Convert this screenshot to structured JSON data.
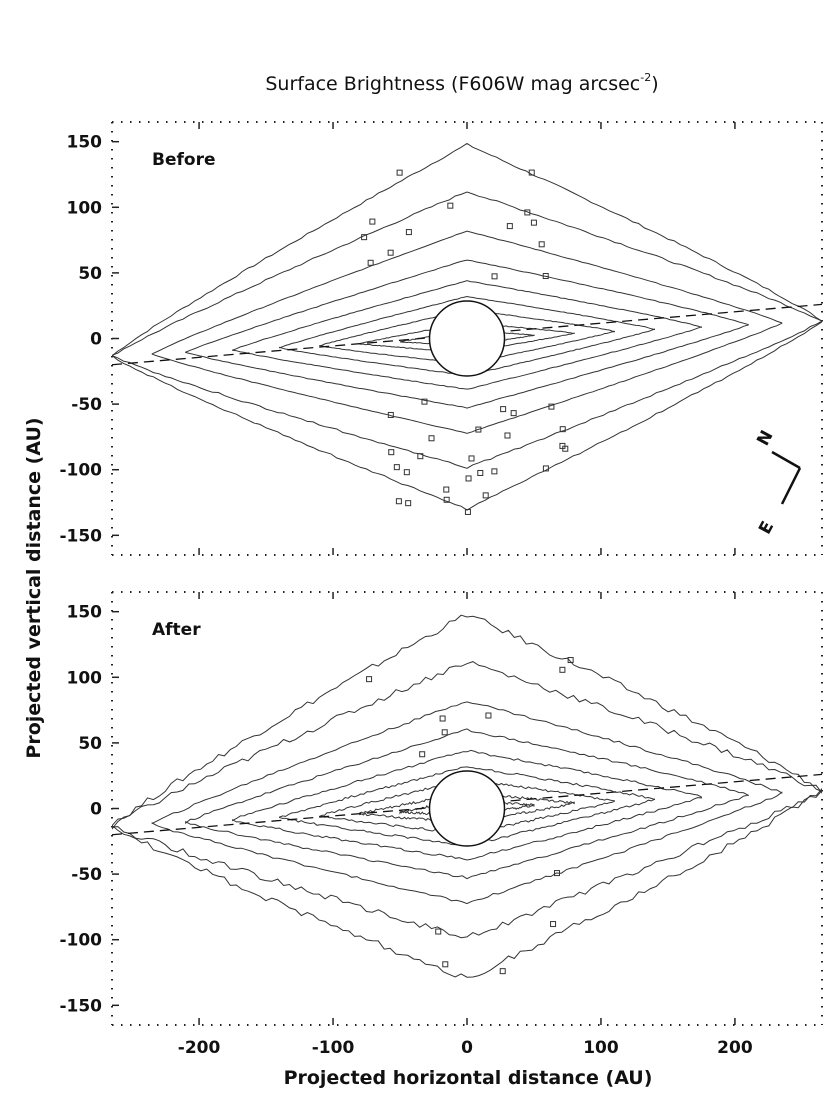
{
  "chart_data": {
    "type": "contour",
    "title": "Surface Brightness (F606W mag arcsec",
    "title_superscript": "-2",
    "title_suffix": ")",
    "xlabel": "Projected horizontal distance (AU)",
    "ylabel": "Projected vertical distance (AU)",
    "xlim": [
      -265,
      265
    ],
    "ylim": [
      -165,
      165
    ],
    "xticks": [
      -200,
      -100,
      0,
      100,
      200
    ],
    "yticks": [
      150,
      100,
      50,
      0,
      -50,
      -100,
      -150
    ],
    "occulted_radius_au": 28,
    "midplane_line": {
      "x": [
        -265,
        265
      ],
      "y": [
        -20,
        26
      ],
      "style": "dashed"
    },
    "contour_levels_halfwidth_au": [
      {
        "x_extent": 265,
        "y_center": 148
      },
      {
        "x_extent": 265,
        "y_center": 112
      },
      {
        "x_extent": 235,
        "y_center": 82
      },
      {
        "x_extent": 210,
        "y_center": 60
      },
      {
        "x_extent": 175,
        "y_center": 44
      },
      {
        "x_extent": 140,
        "y_center": 32
      },
      {
        "x_extent": 110,
        "y_center": 22
      },
      {
        "x_extent": 80,
        "y_center": 12
      },
      {
        "x_extent": 50,
        "y_center": 6
      }
    ],
    "panels": [
      {
        "name": "Before",
        "compass": {
          "north": "N",
          "east": "E"
        }
      },
      {
        "name": "After"
      }
    ]
  }
}
